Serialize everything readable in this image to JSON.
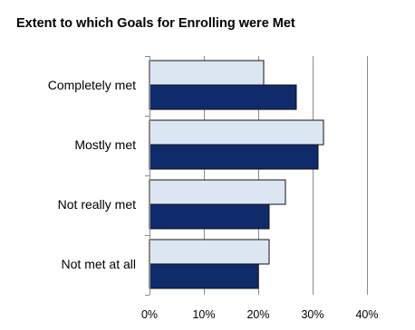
{
  "chart_data": {
    "type": "bar",
    "orientation": "horizontal",
    "title": "Extent to which Goals for Enrolling were Met",
    "xlabel": "",
    "ylabel": "",
    "categories": [
      "Completely met",
      "Mostly met",
      "Not really met",
      "Not met at all"
    ],
    "series": [
      {
        "values": [
          21,
          32,
          25,
          22
        ],
        "color": "#dce6f2"
      },
      {
        "values": [
          27,
          31,
          22,
          20
        ],
        "color": "#0f2b6b"
      }
    ],
    "xlim": [
      0,
      40
    ],
    "ticks": [
      0,
      10,
      20,
      30,
      40
    ],
    "tick_labels": [
      "0%",
      "10%",
      "20%",
      "30%",
      "40%"
    ],
    "grid": true,
    "legend": "none"
  }
}
